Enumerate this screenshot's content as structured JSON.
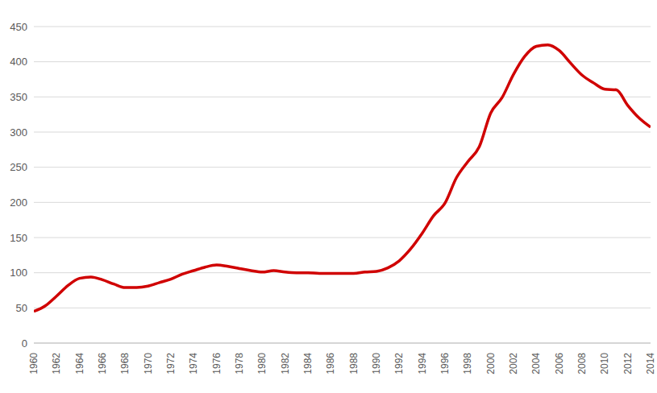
{
  "chart_data": {
    "type": "line",
    "x": [
      1960,
      1961,
      1962,
      1963,
      1964,
      1965,
      1966,
      1967,
      1968,
      1969,
      1970,
      1971,
      1972,
      1973,
      1974,
      1975,
      1976,
      1977,
      1978,
      1979,
      1980,
      1981,
      1982,
      1983,
      1984,
      1985,
      1986,
      1987,
      1988,
      1989,
      1990,
      1991,
      1992,
      1993,
      1994,
      1995,
      1996,
      1997,
      1998,
      1999,
      2000,
      2001,
      2002,
      2003,
      2004,
      2005,
      2006,
      2007,
      2008,
      2009,
      2010,
      2011,
      2012,
      2013,
      2014
    ],
    "values": [
      45,
      53,
      67,
      82,
      92,
      94,
      90,
      84,
      79,
      79,
      81,
      86,
      91,
      98,
      103,
      108,
      111,
      109,
      106,
      103,
      101,
      103,
      101,
      100,
      100,
      99,
      99,
      99,
      99,
      101,
      102,
      107,
      117,
      134,
      156,
      181,
      199,
      235,
      258,
      279,
      327,
      349,
      382,
      408,
      422,
      424,
      416,
      398,
      381,
      370,
      361,
      360,
      338,
      320,
      307
    ],
    "color": "#d00000",
    "xlim": [
      1960,
      2014
    ],
    "ylim": [
      0,
      450
    ],
    "xticks": [
      1960,
      1962,
      1964,
      1966,
      1968,
      1970,
      1972,
      1974,
      1976,
      1978,
      1980,
      1982,
      1984,
      1986,
      1988,
      1990,
      1992,
      1994,
      1996,
      1998,
      2000,
      2002,
      2004,
      2006,
      2008,
      2010,
      2012,
      2014
    ],
    "yticks": [
      0,
      50,
      100,
      150,
      200,
      250,
      300,
      350,
      400,
      450
    ],
    "grid": true
  }
}
